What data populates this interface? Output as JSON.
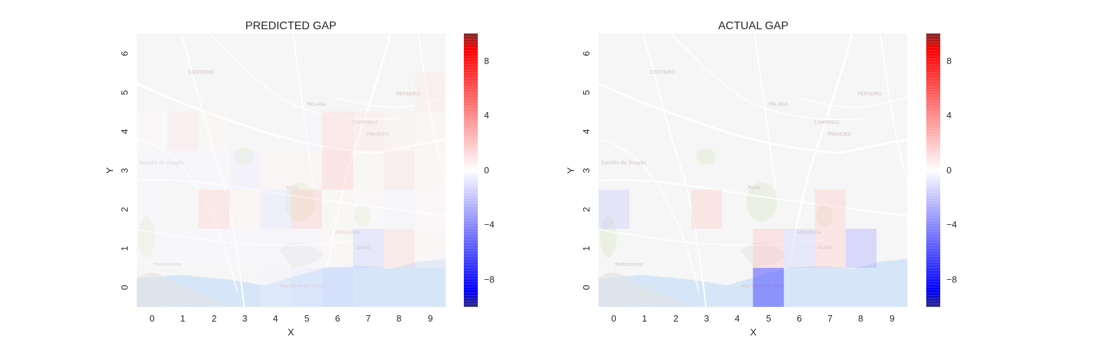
{
  "colors": {
    "neg": "#0000ff",
    "zero": "#ffffff",
    "pos": "#ff0000",
    "map_land": "#f1f1f1",
    "map_park": "#dfe8cf",
    "map_water": "#bcd6f5",
    "map_road": "#ffffff"
  },
  "chart_data": [
    {
      "type": "heatmap",
      "title": "PREDICTED GAP",
      "xlabel": "X",
      "ylabel": "Y",
      "x_ticks": [
        "0",
        "1",
        "2",
        "3",
        "4",
        "5",
        "6",
        "7",
        "8",
        "9"
      ],
      "y_ticks": [
        "0",
        "1",
        "2",
        "3",
        "4",
        "5",
        "6"
      ],
      "colorbar": {
        "min": -10,
        "max": 10,
        "ticks": [
          "8",
          "4",
          "0",
          "−4",
          "−8"
        ],
        "tick_values": [
          8,
          4,
          0,
          -4,
          -8
        ],
        "cmap": "bwr"
      },
      "background": "street map",
      "cells": [
        {
          "x": 0,
          "y": 0,
          "v": 0
        },
        {
          "x": 1,
          "y": 0,
          "v": 0
        },
        {
          "x": 2,
          "y": 0,
          "v": 0
        },
        {
          "x": 3,
          "y": 0,
          "v": 0
        },
        {
          "x": 4,
          "y": 0,
          "v": -0.5
        },
        {
          "x": 5,
          "y": 0,
          "v": -0.8
        },
        {
          "x": 6,
          "y": 0,
          "v": -1.5
        },
        {
          "x": 7,
          "y": 0,
          "v": 0
        },
        {
          "x": 8,
          "y": 0,
          "v": 0
        },
        {
          "x": 9,
          "y": 0,
          "v": 0
        },
        {
          "x": 0,
          "y": 1,
          "v": -0.2
        },
        {
          "x": 1,
          "y": 1,
          "v": -0.2
        },
        {
          "x": 2,
          "y": 1,
          "v": -0.2
        },
        {
          "x": 3,
          "y": 1,
          "v": -0.2
        },
        {
          "x": 4,
          "y": 1,
          "v": -0.3
        },
        {
          "x": 5,
          "y": 1,
          "v": -0.3
        },
        {
          "x": 6,
          "y": 1,
          "v": 0.3
        },
        {
          "x": 7,
          "y": 1,
          "v": -1.8
        },
        {
          "x": 8,
          "y": 1,
          "v": 1.5
        },
        {
          "x": 9,
          "y": 1,
          "v": 0.3
        },
        {
          "x": 0,
          "y": 2,
          "v": -0.2
        },
        {
          "x": 1,
          "y": 2,
          "v": 0
        },
        {
          "x": 2,
          "y": 2,
          "v": 1.8
        },
        {
          "x": 3,
          "y": 2,
          "v": 0.4
        },
        {
          "x": 4,
          "y": 2,
          "v": -1.0
        },
        {
          "x": 5,
          "y": 2,
          "v": 2.0
        },
        {
          "x": 6,
          "y": 2,
          "v": 0.3
        },
        {
          "x": 7,
          "y": 2,
          "v": 0.2
        },
        {
          "x": 8,
          "y": 2,
          "v": -0.3
        },
        {
          "x": 9,
          "y": 2,
          "v": 0.2
        },
        {
          "x": 0,
          "y": 3,
          "v": -0.2
        },
        {
          "x": 1,
          "y": 3,
          "v": -0.3
        },
        {
          "x": 2,
          "y": 3,
          "v": -0.2
        },
        {
          "x": 3,
          "y": 3,
          "v": -0.6
        },
        {
          "x": 4,
          "y": 3,
          "v": 0.4
        },
        {
          "x": 5,
          "y": 3,
          "v": 0.4
        },
        {
          "x": 6,
          "y": 3,
          "v": 2.0
        },
        {
          "x": 7,
          "y": 3,
          "v": 0.3
        },
        {
          "x": 8,
          "y": 3,
          "v": 1.2
        },
        {
          "x": 9,
          "y": 3,
          "v": 0.3
        },
        {
          "x": 0,
          "y": 4,
          "v": 0.2
        },
        {
          "x": 1,
          "y": 4,
          "v": 0.8
        },
        {
          "x": 2,
          "y": 4,
          "v": 0.3
        },
        {
          "x": 3,
          "y": 4,
          "v": 0
        },
        {
          "x": 4,
          "y": 4,
          "v": 0
        },
        {
          "x": 5,
          "y": 4,
          "v": -0.3
        },
        {
          "x": 6,
          "y": 4,
          "v": 1.6
        },
        {
          "x": 7,
          "y": 4,
          "v": 1.0
        },
        {
          "x": 8,
          "y": 4,
          "v": 0.5
        },
        {
          "x": 9,
          "y": 4,
          "v": 0.3
        },
        {
          "x": 0,
          "y": 5,
          "v": 0
        },
        {
          "x": 1,
          "y": 5,
          "v": 0
        },
        {
          "x": 2,
          "y": 5,
          "v": 0
        },
        {
          "x": 3,
          "y": 5,
          "v": 0
        },
        {
          "x": 4,
          "y": 5,
          "v": 0
        },
        {
          "x": 5,
          "y": 5,
          "v": 0
        },
        {
          "x": 6,
          "y": 5,
          "v": 0
        },
        {
          "x": 7,
          "y": 5,
          "v": 0
        },
        {
          "x": 8,
          "y": 5,
          "v": 0
        },
        {
          "x": 9,
          "y": 5,
          "v": 0.8
        },
        {
          "x": 0,
          "y": 6,
          "v": 0
        },
        {
          "x": 1,
          "y": 6,
          "v": 0
        },
        {
          "x": 2,
          "y": 6,
          "v": 0
        },
        {
          "x": 3,
          "y": 6,
          "v": 0
        },
        {
          "x": 4,
          "y": 6,
          "v": 0
        },
        {
          "x": 5,
          "y": 6,
          "v": 0
        },
        {
          "x": 6,
          "y": 6,
          "v": 0
        },
        {
          "x": 7,
          "y": 6,
          "v": 0
        },
        {
          "x": 8,
          "y": 6,
          "v": 0
        },
        {
          "x": 9,
          "y": 6,
          "v": 0
        }
      ]
    },
    {
      "type": "heatmap",
      "title": "ACTUAL GAP",
      "xlabel": "X",
      "ylabel": "Y",
      "x_ticks": [
        "0",
        "1",
        "2",
        "3",
        "4",
        "5",
        "6",
        "7",
        "8",
        "9"
      ],
      "y_ticks": [
        "0",
        "1",
        "2",
        "3",
        "4",
        "5",
        "6"
      ],
      "colorbar": {
        "min": -10,
        "max": 10,
        "ticks": [
          "8",
          "4",
          "0",
          "−4",
          "−8"
        ],
        "tick_values": [
          8,
          4,
          0,
          -4,
          -8
        ],
        "cmap": "bwr"
      },
      "background": "street map",
      "cells": [
        {
          "x": 0,
          "y": 0,
          "v": 0
        },
        {
          "x": 1,
          "y": 0,
          "v": 0
        },
        {
          "x": 2,
          "y": 0,
          "v": 0
        },
        {
          "x": 3,
          "y": 0,
          "v": 0
        },
        {
          "x": 4,
          "y": 0,
          "v": 0
        },
        {
          "x": 5,
          "y": 0,
          "v": -6.5
        },
        {
          "x": 6,
          "y": 0,
          "v": 0
        },
        {
          "x": 7,
          "y": 0,
          "v": 0
        },
        {
          "x": 8,
          "y": 0,
          "v": 0
        },
        {
          "x": 9,
          "y": 0,
          "v": 0
        },
        {
          "x": 0,
          "y": 1,
          "v": 0
        },
        {
          "x": 1,
          "y": 1,
          "v": 0
        },
        {
          "x": 2,
          "y": 1,
          "v": 0
        },
        {
          "x": 3,
          "y": 1,
          "v": 0
        },
        {
          "x": 4,
          "y": 1,
          "v": 0
        },
        {
          "x": 5,
          "y": 1,
          "v": 2.2
        },
        {
          "x": 6,
          "y": 1,
          "v": -1.8
        },
        {
          "x": 7,
          "y": 1,
          "v": 2.0
        },
        {
          "x": 8,
          "y": 1,
          "v": -3.0
        },
        {
          "x": 9,
          "y": 1,
          "v": 0
        },
        {
          "x": 0,
          "y": 2,
          "v": -2.0
        },
        {
          "x": 1,
          "y": 2,
          "v": 0
        },
        {
          "x": 2,
          "y": 2,
          "v": 0
        },
        {
          "x": 3,
          "y": 2,
          "v": 2.0
        },
        {
          "x": 4,
          "y": 2,
          "v": 0
        },
        {
          "x": 5,
          "y": 2,
          "v": 0
        },
        {
          "x": 6,
          "y": 2,
          "v": 0
        },
        {
          "x": 7,
          "y": 2,
          "v": 2.0
        },
        {
          "x": 8,
          "y": 2,
          "v": 0
        },
        {
          "x": 9,
          "y": 2,
          "v": 0
        },
        {
          "x": 0,
          "y": 3,
          "v": 0
        },
        {
          "x": 1,
          "y": 3,
          "v": 0
        },
        {
          "x": 2,
          "y": 3,
          "v": 0
        },
        {
          "x": 3,
          "y": 3,
          "v": 0
        },
        {
          "x": 4,
          "y": 3,
          "v": 0
        },
        {
          "x": 5,
          "y": 3,
          "v": 0
        },
        {
          "x": 6,
          "y": 3,
          "v": 0
        },
        {
          "x": 7,
          "y": 3,
          "v": 0
        },
        {
          "x": 8,
          "y": 3,
          "v": 0
        },
        {
          "x": 9,
          "y": 3,
          "v": 0
        },
        {
          "x": 0,
          "y": 4,
          "v": 0
        },
        {
          "x": 1,
          "y": 4,
          "v": 0
        },
        {
          "x": 2,
          "y": 4,
          "v": 0
        },
        {
          "x": 3,
          "y": 4,
          "v": 0
        },
        {
          "x": 4,
          "y": 4,
          "v": 0
        },
        {
          "x": 5,
          "y": 4,
          "v": 0
        },
        {
          "x": 6,
          "y": 4,
          "v": 0
        },
        {
          "x": 7,
          "y": 4,
          "v": 0
        },
        {
          "x": 8,
          "y": 4,
          "v": 0
        },
        {
          "x": 9,
          "y": 4,
          "v": 0
        },
        {
          "x": 0,
          "y": 5,
          "v": 0
        },
        {
          "x": 1,
          "y": 5,
          "v": 0
        },
        {
          "x": 2,
          "y": 5,
          "v": 0
        },
        {
          "x": 3,
          "y": 5,
          "v": 0
        },
        {
          "x": 4,
          "y": 5,
          "v": 0
        },
        {
          "x": 5,
          "y": 5,
          "v": 0
        },
        {
          "x": 6,
          "y": 5,
          "v": 0
        },
        {
          "x": 7,
          "y": 5,
          "v": 0
        },
        {
          "x": 8,
          "y": 5,
          "v": 0
        },
        {
          "x": 9,
          "y": 5,
          "v": 0
        },
        {
          "x": 0,
          "y": 6,
          "v": 0
        },
        {
          "x": 1,
          "y": 6,
          "v": 0
        },
        {
          "x": 2,
          "y": 6,
          "v": 0
        },
        {
          "x": 3,
          "y": 6,
          "v": 0
        },
        {
          "x": 4,
          "y": 6,
          "v": 0
        },
        {
          "x": 5,
          "y": 6,
          "v": 0
        },
        {
          "x": 6,
          "y": 6,
          "v": 0
        },
        {
          "x": 7,
          "y": 6,
          "v": 0
        },
        {
          "x": 8,
          "y": 6,
          "v": 0
        },
        {
          "x": 9,
          "y": 6,
          "v": 0
        }
      ]
    }
  ]
}
